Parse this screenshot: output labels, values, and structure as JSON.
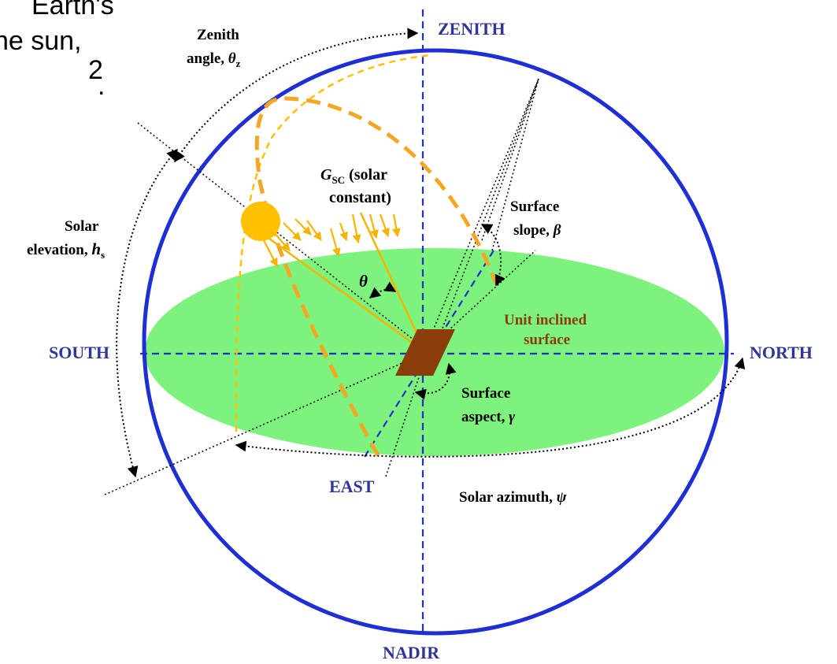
{
  "slide_text": {
    "line1": "Earth's",
    "line2": "he sun,",
    "line3_sup": "2",
    "line3_dot": "."
  },
  "compass": {
    "zenith": "ZENITH",
    "nadir": "NADIR",
    "south": "SOUTH",
    "north": "NORTH",
    "east": "EAST"
  },
  "labels": {
    "zenith_angle": {
      "line1": "Zenith",
      "line2_prefix": "angle, ",
      "symbol": "θ",
      "subscript": "z"
    },
    "solar_elevation": {
      "line1": "Solar",
      "line2_prefix": "elevation, ",
      "symbol": "h",
      "subscript": "s"
    },
    "solar_constant": {
      "symbol": "G",
      "subscript": "SC",
      "line1_suffix": " (solar",
      "line2": "constant)"
    },
    "incidence": {
      "symbol": "θ"
    },
    "surface_slope": {
      "line1": "Surface",
      "line2_prefix": "slope, ",
      "symbol": "β"
    },
    "unit_surface": {
      "line1": "Unit inclined",
      "line2": "surface"
    },
    "surface_aspect": {
      "line1": "Surface",
      "line2_prefix": "aspect, ",
      "symbol": "γ"
    },
    "solar_azimuth": {
      "prefix": "Solar azimuth, ",
      "symbol": "ψ"
    }
  },
  "colors": {
    "sphere": "#1e2fd6",
    "axes": "#1f2fc8",
    "compass_text": "#2f3599",
    "ground": "#7df27d",
    "sun": "#ffc000",
    "sun_path": "#f5a623",
    "rays": "#f5b400",
    "surface": "#8a3c0a",
    "surface_label": "#8a3c0a"
  }
}
